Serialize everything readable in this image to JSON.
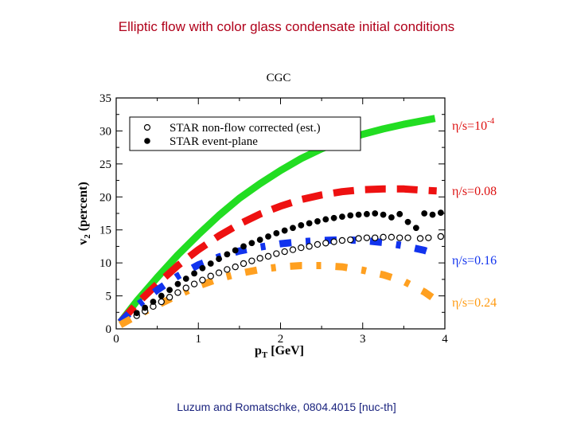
{
  "slide": {
    "title": "Elliptic flow with color glass condensate initial conditions",
    "citation": "Luzum and Romatschke, 0804.4015 [nuc-th]"
  },
  "chart_data": {
    "type": "scatter",
    "title": "CGC",
    "xlabel_main": "p",
    "xlabel_sub": "T",
    "xlabel_unit": " [GeV]",
    "ylabel_main": "v",
    "ylabel_sub": "2",
    "ylabel_unit": " (percent)",
    "xlim": [
      0,
      4
    ],
    "ylim": [
      0,
      35
    ],
    "xticks": [
      0,
      1,
      2,
      3,
      4
    ],
    "yticks": [
      0,
      5,
      10,
      15,
      20,
      25,
      30,
      35
    ],
    "legend": {
      "placement": "top-left",
      "entries": [
        {
          "label": "STAR non-flow corrected (est.)",
          "marker": "open-circle"
        },
        {
          "label": "STAR event-plane",
          "marker": "filled-circle"
        }
      ]
    },
    "curves": [
      {
        "name": "eta/s=10^-4",
        "eta": "η",
        "text": "/s=10",
        "sup": "-4",
        "color": "#22dd22",
        "style": "solid",
        "x": [
          0.05,
          0.25,
          0.5,
          0.75,
          1.0,
          1.25,
          1.5,
          1.75,
          2.0,
          2.25,
          2.5,
          2.75,
          3.0,
          3.25,
          3.5,
          3.75,
          3.88
        ],
        "y": [
          1.0,
          4.2,
          7.8,
          11.2,
          14.3,
          17.2,
          19.8,
          22.0,
          24.0,
          25.8,
          27.3,
          28.5,
          29.5,
          30.3,
          31.0,
          31.6,
          31.9
        ]
      },
      {
        "name": "eta/s=0.08",
        "eta": "η",
        "text": "/s=0.08",
        "sup": "",
        "color": "#ee1111",
        "style": "dash",
        "x": [
          0.05,
          0.25,
          0.5,
          0.75,
          1.0,
          1.25,
          1.5,
          1.75,
          2.0,
          2.25,
          2.5,
          2.75,
          3.0,
          3.25,
          3.5,
          3.75,
          3.9
        ],
        "y": [
          1.0,
          3.8,
          6.8,
          9.6,
          12.0,
          14.1,
          15.9,
          17.4,
          18.6,
          19.6,
          20.3,
          20.8,
          21.1,
          21.2,
          21.2,
          21.0,
          20.9
        ]
      },
      {
        "name": "eta/s=0.16",
        "eta": "η",
        "text": "/s=0.16",
        "sup": "",
        "color": "#1133ee",
        "style": "dashdot",
        "x": [
          0.05,
          0.25,
          0.5,
          0.75,
          1.0,
          1.25,
          1.5,
          1.75,
          2.0,
          2.25,
          2.5,
          2.75,
          3.0,
          3.25,
          3.5,
          3.75,
          3.9
        ],
        "y": [
          1.0,
          3.5,
          5.9,
          8.0,
          9.7,
          10.9,
          11.8,
          12.4,
          12.9,
          13.2,
          13.4,
          13.5,
          13.4,
          13.1,
          12.6,
          11.9,
          11.3
        ]
      },
      {
        "name": "eta/s=0.24",
        "eta": "η",
        "text": "/s=0.24",
        "sup": "",
        "color": "#ffa020",
        "style": "dashdot",
        "x": [
          0.05,
          0.25,
          0.5,
          0.75,
          1.0,
          1.25,
          1.5,
          1.75,
          2.0,
          2.25,
          2.5,
          2.75,
          3.0,
          3.25,
          3.5,
          3.75,
          3.9
        ],
        "y": [
          0.6,
          2.0,
          3.6,
          5.1,
          6.5,
          7.6,
          8.4,
          9.0,
          9.4,
          9.6,
          9.6,
          9.4,
          8.9,
          8.2,
          7.2,
          5.6,
          4.3
        ]
      }
    ],
    "series": [
      {
        "name": "STAR non-flow corrected (est.)",
        "marker": "open-circle",
        "x": [
          0.25,
          0.35,
          0.45,
          0.55,
          0.65,
          0.75,
          0.85,
          0.95,
          1.05,
          1.15,
          1.25,
          1.35,
          1.45,
          1.55,
          1.65,
          1.75,
          1.85,
          1.95,
          2.05,
          2.15,
          2.25,
          2.35,
          2.45,
          2.55,
          2.65,
          2.75,
          2.85,
          2.95,
          3.05,
          3.15,
          3.25,
          3.35,
          3.45,
          3.55,
          3.7,
          3.8,
          3.95
        ],
        "y": [
          2.0,
          2.7,
          3.4,
          4.1,
          4.8,
          5.5,
          6.2,
          6.8,
          7.4,
          8.0,
          8.5,
          9.0,
          9.4,
          9.9,
          10.3,
          10.7,
          11.0,
          11.4,
          11.7,
          12.0,
          12.3,
          12.5,
          12.8,
          13.0,
          13.2,
          13.4,
          13.5,
          13.7,
          13.8,
          13.8,
          13.9,
          13.9,
          13.8,
          13.8,
          13.7,
          13.8,
          14.0
        ]
      },
      {
        "name": "STAR event-plane",
        "marker": "filled-circle",
        "x": [
          0.25,
          0.35,
          0.45,
          0.55,
          0.65,
          0.75,
          0.85,
          0.95,
          1.05,
          1.15,
          1.25,
          1.35,
          1.45,
          1.55,
          1.65,
          1.75,
          1.85,
          1.95,
          2.05,
          2.15,
          2.25,
          2.35,
          2.45,
          2.55,
          2.65,
          2.75,
          2.85,
          2.95,
          3.05,
          3.15,
          3.25,
          3.35,
          3.45,
          3.55,
          3.65,
          3.75,
          3.85,
          3.95
        ],
        "y": [
          2.4,
          3.2,
          4.1,
          5.0,
          5.9,
          6.8,
          7.6,
          8.4,
          9.2,
          9.9,
          10.6,
          11.3,
          11.9,
          12.5,
          13.0,
          13.5,
          14.0,
          14.5,
          14.9,
          15.3,
          15.7,
          16.0,
          16.3,
          16.6,
          16.8,
          17.0,
          17.2,
          17.3,
          17.4,
          17.5,
          17.3,
          16.9,
          17.4,
          16.2,
          15.3,
          17.5,
          17.3,
          17.6
        ]
      }
    ]
  }
}
